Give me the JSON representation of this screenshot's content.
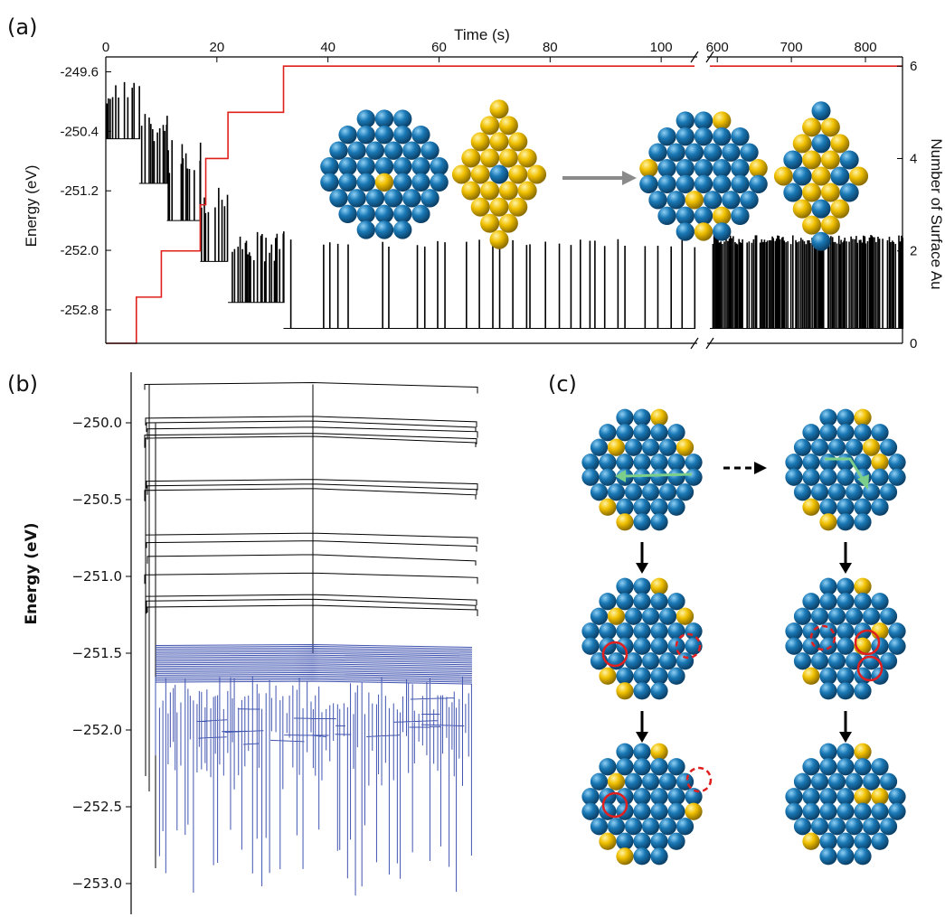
{
  "labels": {
    "a": "(a)",
    "b": "(b)",
    "c": "(c)"
  },
  "colors": {
    "co": "#1f78b4",
    "au": "#f2c200",
    "red_line": "#e0201b",
    "blue_trace": "#4154b0",
    "black_trace": "#000000",
    "arrow_green": "#7ccf8a",
    "arrow_gray": "#8a8a8a"
  },
  "chart_data": [
    {
      "panel": "a",
      "type": "line",
      "title": "",
      "xlabel": "Time (s)",
      "ylabel": "Energy (eV)",
      "y2label": "Number of Surface Au",
      "xlim_segment1": [
        0,
        106
      ],
      "xlim_segment2": [
        590,
        850
      ],
      "x_ticks": [
        "0",
        "20",
        "40",
        "60",
        "80",
        "100",
        "600",
        "700",
        "800"
      ],
      "y_ticks": [
        "-249.6",
        "-250.4",
        "-251.2",
        "-252.0",
        "-252.8"
      ],
      "y2_ticks": [
        "0",
        "2",
        "4",
        "6"
      ],
      "ylim": [
        -253.25,
        -249.4
      ],
      "y2lim": [
        0,
        6.2
      ],
      "grid": false,
      "series": [
        {
          "axis": "right",
          "x": [
            0,
            5.5,
            5.5,
            10,
            10,
            17,
            17,
            18,
            18,
            22,
            22,
            32,
            32,
            106,
            590,
            850
          ],
          "y": [
            0,
            0,
            1,
            1,
            2,
            2,
            3,
            3,
            4,
            4,
            5,
            5,
            6,
            6,
            6,
            6
          ]
        },
        {
          "axis": "left",
          "levels": [
            {
              "x": [
                0,
                6
              ],
              "baseline": -250.5,
              "spike_top": -249.7
            },
            {
              "x": [
                6,
                11
              ],
              "baseline": -251.1,
              "spike_top": -250.15
            },
            {
              "x": [
                11,
                17
              ],
              "baseline": -251.6,
              "spike_top": -250.45
            },
            {
              "x": [
                17,
                22
              ],
              "baseline": -252.15,
              "spike_top": -251.05
            },
            {
              "x": [
                22,
                32
              ],
              "baseline": -252.7,
              "spike_top": -251.75
            },
            {
              "x": [
                32,
                106
              ],
              "baseline": -253.05,
              "spike_top": -251.85
            },
            {
              "x": [
                590,
                850
              ],
              "baseline": -253.05,
              "spike_top": -251.8
            }
          ]
        }
      ]
    },
    {
      "panel": "b",
      "type": "line",
      "title": "",
      "xlabel": "",
      "ylabel": "Energy (eV)",
      "y_ticks": [
        "−250.0",
        "−250.5",
        "−251.0",
        "−251.5",
        "−252.0",
        "−252.5",
        "−253.0"
      ],
      "ylim": [
        -253.2,
        -249.6
      ],
      "grid": false,
      "black_levels": [
        -249.75,
        -249.97,
        -250.0,
        -250.04,
        -250.08,
        -250.1,
        -250.38,
        -250.41,
        -250.44,
        -250.73,
        -250.78,
        -250.87,
        -250.99,
        -251.13,
        -251.16,
        -251.2
      ],
      "blue_levels_range": [
        -251.45,
        -251.7
      ],
      "blue_min": -253.1
    }
  ]
}
